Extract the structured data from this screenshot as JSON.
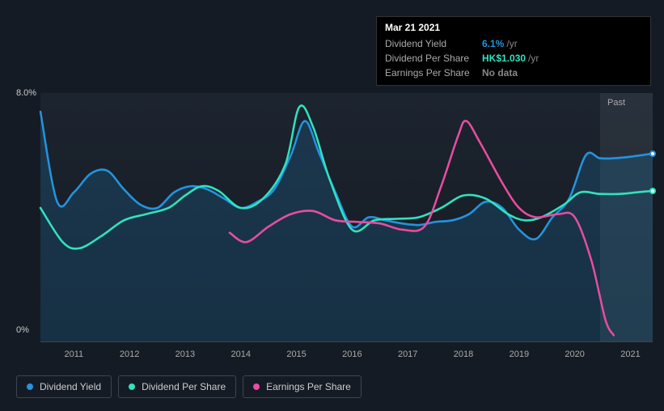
{
  "tooltip": {
    "date": "Mar 21 2021",
    "rows": [
      {
        "label": "Dividend Yield",
        "value": "6.1%",
        "unit": "/yr",
        "color": "#2394df"
      },
      {
        "label": "Dividend Per Share",
        "value": "HK$1.030",
        "unit": "/yr",
        "color": "#31e2bd"
      },
      {
        "label": "Earnings Per Share",
        "value": "No data",
        "unit": "",
        "color": "#888888"
      }
    ]
  },
  "chart": {
    "type": "line",
    "ylim": [
      0,
      8
    ],
    "ylabels": [
      {
        "v": 8,
        "text": "8.0%"
      },
      {
        "v": 0,
        "text": "0%"
      }
    ],
    "xlim": [
      2010.4,
      2021.4
    ],
    "xticks": [
      2011,
      2012,
      2013,
      2014,
      2015,
      2016,
      2017,
      2018,
      2019,
      2020,
      2021
    ],
    "past_label": "Past",
    "future_start": 2020.45,
    "background": "#151b24",
    "grid_color": "#2a3340",
    "line_width": 2.5,
    "series": [
      {
        "name": "Dividend Yield",
        "color": "#2394df",
        "fill": "rgba(35,148,223,0.18)",
        "end_marker": true,
        "points": [
          [
            2010.4,
            7.4
          ],
          [
            2010.7,
            4.5
          ],
          [
            2011.0,
            4.8
          ],
          [
            2011.3,
            5.4
          ],
          [
            2011.6,
            5.5
          ],
          [
            2011.9,
            4.9
          ],
          [
            2012.2,
            4.4
          ],
          [
            2012.5,
            4.3
          ],
          [
            2012.8,
            4.8
          ],
          [
            2013.1,
            5.0
          ],
          [
            2013.4,
            4.9
          ],
          [
            2013.7,
            4.6
          ],
          [
            2014.0,
            4.3
          ],
          [
            2014.3,
            4.5
          ],
          [
            2014.6,
            4.9
          ],
          [
            2014.9,
            6.0
          ],
          [
            2015.15,
            7.1
          ],
          [
            2015.4,
            6.1
          ],
          [
            2015.7,
            4.8
          ],
          [
            2016.0,
            3.7
          ],
          [
            2016.3,
            4.0
          ],
          [
            2016.6,
            3.9
          ],
          [
            2016.9,
            3.8
          ],
          [
            2017.2,
            3.75
          ],
          [
            2017.5,
            3.85
          ],
          [
            2017.8,
            3.9
          ],
          [
            2018.1,
            4.1
          ],
          [
            2018.4,
            4.5
          ],
          [
            2018.7,
            4.3
          ],
          [
            2019.0,
            3.6
          ],
          [
            2019.3,
            3.3
          ],
          [
            2019.6,
            4.0
          ],
          [
            2019.9,
            4.6
          ],
          [
            2020.2,
            6.0
          ],
          [
            2020.45,
            5.9
          ],
          [
            2020.7,
            5.9
          ],
          [
            2021.0,
            5.95
          ],
          [
            2021.4,
            6.05
          ]
        ]
      },
      {
        "name": "Dividend Per Share",
        "color": "#31e2bd",
        "end_marker": true,
        "points": [
          [
            2010.4,
            4.3
          ],
          [
            2010.8,
            3.2
          ],
          [
            2011.1,
            3.0
          ],
          [
            2011.5,
            3.4
          ],
          [
            2011.9,
            3.9
          ],
          [
            2012.3,
            4.1
          ],
          [
            2012.7,
            4.3
          ],
          [
            2013.0,
            4.7
          ],
          [
            2013.3,
            5.0
          ],
          [
            2013.6,
            4.85
          ],
          [
            2014.0,
            4.3
          ],
          [
            2014.4,
            4.6
          ],
          [
            2014.8,
            5.7
          ],
          [
            2015.05,
            7.55
          ],
          [
            2015.3,
            6.9
          ],
          [
            2015.6,
            5.2
          ],
          [
            2016.0,
            3.6
          ],
          [
            2016.4,
            3.9
          ],
          [
            2016.8,
            3.95
          ],
          [
            2017.2,
            4.0
          ],
          [
            2017.6,
            4.3
          ],
          [
            2018.0,
            4.7
          ],
          [
            2018.4,
            4.6
          ],
          [
            2018.8,
            4.1
          ],
          [
            2019.1,
            3.9
          ],
          [
            2019.4,
            4.0
          ],
          [
            2019.8,
            4.4
          ],
          [
            2020.1,
            4.8
          ],
          [
            2020.45,
            4.75
          ],
          [
            2020.8,
            4.75
          ],
          [
            2021.1,
            4.8
          ],
          [
            2021.4,
            4.85
          ]
        ]
      },
      {
        "name": "Earnings Per Share",
        "color": "#e94ca1",
        "end_marker": false,
        "points": [
          [
            2013.8,
            3.5
          ],
          [
            2014.1,
            3.2
          ],
          [
            2014.5,
            3.7
          ],
          [
            2014.9,
            4.1
          ],
          [
            2015.3,
            4.2
          ],
          [
            2015.7,
            3.9
          ],
          [
            2016.1,
            3.85
          ],
          [
            2016.5,
            3.8
          ],
          [
            2016.9,
            3.6
          ],
          [
            2017.3,
            3.7
          ],
          [
            2017.6,
            5.0
          ],
          [
            2017.9,
            6.6
          ],
          [
            2018.05,
            7.1
          ],
          [
            2018.3,
            6.4
          ],
          [
            2018.7,
            5.1
          ],
          [
            2019.0,
            4.3
          ],
          [
            2019.3,
            4.0
          ],
          [
            2019.7,
            4.1
          ],
          [
            2020.0,
            4.0
          ],
          [
            2020.3,
            2.6
          ],
          [
            2020.55,
            0.7
          ],
          [
            2020.7,
            0.2
          ]
        ]
      }
    ]
  },
  "legend": [
    {
      "name": "Dividend Yield",
      "color": "#2394df"
    },
    {
      "name": "Dividend Per Share",
      "color": "#31e2bd"
    },
    {
      "name": "Earnings Per Share",
      "color": "#e94ca1"
    }
  ]
}
